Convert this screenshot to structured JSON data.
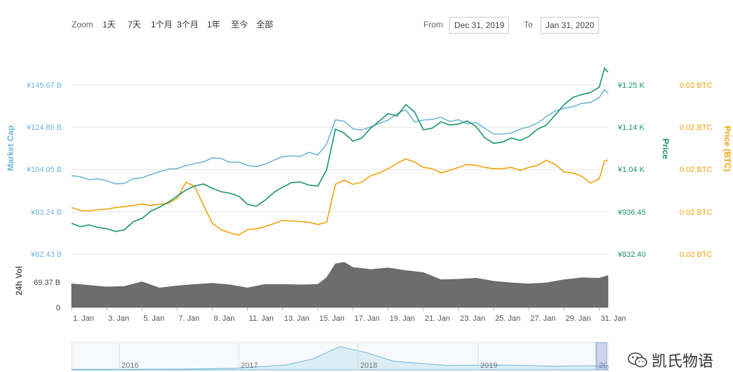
{
  "toolbar": {
    "zoom_label": "Zoom",
    "zoom_buttons": [
      "1天",
      "7天",
      "1个月",
      "3个月",
      "1年",
      "至今",
      "全部"
    ],
    "from_label": "From",
    "from_value": "Dec 31, 2019",
    "to_label": "To",
    "to_value": "Jan 31, 2020"
  },
  "watermark_text": "凯氏物语",
  "colors": {
    "market_cap": "#6fb6d6",
    "price": "#1a9470",
    "price_btc": "#f0a30a",
    "volume": "#6d6d6d",
    "grid": "#e6e6e6"
  },
  "chart_data": {
    "type": "line",
    "xlabel": "",
    "x_ticks": [
      "1. Jan",
      "3. Jan",
      "5. Jan",
      "7. Jan",
      "9. Jan",
      "11. Jan",
      "13. Jan",
      "15. Jan",
      "17. Jan",
      "19. Jan",
      "21. Jan",
      "23. Jan",
      "25. Jan",
      "27. Jan",
      "29. Jan",
      "31. Jan"
    ],
    "x_range": [
      0,
      30.5
    ],
    "axes": {
      "market_cap": {
        "label": "Market Cap",
        "ticks": [
          "¥62.43 B",
          "¥83.24 B",
          "¥104.05 B",
          "¥124.86 B",
          "¥145.67 B"
        ],
        "range": [
          62.43,
          145.67
        ],
        "unit": "¥ B"
      },
      "price": {
        "label": "Price",
        "ticks": [
          "¥832.40",
          "¥936.45",
          "¥1.04 K",
          "¥1.14 K",
          "¥1.25 K"
        ],
        "range": [
          832.4,
          1248.6
        ],
        "unit": "¥"
      },
      "price_btc": {
        "label": "Price (BTC)",
        "ticks": [
          "0.02 BTC",
          "0.02 BTC",
          "0.02 BTC",
          "0.02 BTC",
          "0.02 BTC"
        ],
        "range": [
          0,
          4
        ]
      },
      "volume": {
        "label": "24h Vol",
        "ticks": [
          "0",
          "69.37 B"
        ],
        "range": [
          0,
          104
        ],
        "unit": "¥ B"
      }
    },
    "series": [
      {
        "name": "Market Cap",
        "axis": "market_cap",
        "x": [
          0,
          0.5,
          1,
          1.5,
          2,
          2.5,
          3,
          3.5,
          4,
          4.5,
          5,
          5.5,
          6,
          6.5,
          7,
          7.5,
          8,
          8.5,
          9,
          9.5,
          10,
          10.5,
          11,
          11.5,
          12,
          12.5,
          13,
          13.5,
          14,
          14.5,
          15,
          15.5,
          16,
          16.5,
          17,
          17.5,
          18,
          18.5,
          19,
          19.5,
          20,
          20.5,
          21,
          21.5,
          22,
          22.5,
          23,
          23.5,
          24,
          24.5,
          25,
          25.5,
          26,
          26.5,
          27,
          27.5,
          28,
          28.5,
          29,
          29.5,
          30,
          30.3,
          30.5
        ],
        "y": [
          101,
          100.5,
          99,
          99.5,
          98.5,
          97,
          97.2,
          99.5,
          100,
          101.5,
          103,
          104.2,
          104.5,
          106,
          107,
          107.8,
          109.8,
          109.5,
          107.5,
          107.8,
          106,
          105.5,
          106.6,
          108.6,
          110.4,
          110.8,
          110.5,
          112.5,
          111.2,
          116.5,
          128.5,
          127.8,
          124,
          123.5,
          125,
          126.7,
          128.4,
          131.5,
          133.5,
          127.5,
          128.4,
          128.7,
          129.7,
          127.7,
          128.5,
          126.5,
          127.2,
          124.3,
          121.5,
          121.5,
          122,
          123.9,
          125.1,
          126.9,
          130.1,
          132.9,
          134.2,
          134.9,
          136.6,
          137,
          139.5,
          143.4,
          141.5
        ]
      },
      {
        "name": "Price",
        "axis": "price",
        "x": [
          0,
          0.5,
          1,
          1.5,
          2,
          2.5,
          3,
          3.5,
          4,
          4.5,
          5,
          5.5,
          6,
          6.5,
          7,
          7.5,
          8,
          8.5,
          9,
          9.5,
          10,
          10.5,
          11,
          11.5,
          12,
          12.5,
          13,
          13.5,
          14,
          14.5,
          15,
          15.5,
          16,
          16.5,
          17,
          17.5,
          18,
          18.5,
          19,
          19.5,
          20,
          20.5,
          21,
          21.5,
          22,
          22.5,
          23,
          23.5,
          24,
          24.5,
          25,
          25.5,
          26,
          26.5,
          27,
          27.5,
          28,
          28.5,
          29,
          29.5,
          30,
          30.3,
          30.5
        ],
        "y": [
          908,
          900,
          904,
          898,
          895,
          888,
          892,
          912,
          920,
          938,
          948,
          960,
          975,
          990,
          1000,
          1005,
          994,
          986,
          982,
          975,
          955,
          950,
          965,
          984,
          997,
          1008,
          1010,
          1002,
          1000,
          1040,
          1140,
          1130,
          1110,
          1118,
          1142,
          1160,
          1178,
          1172,
          1200,
          1182,
          1138,
          1142,
          1158,
          1150,
          1152,
          1160,
          1146,
          1118,
          1105,
          1108,
          1118,
          1112,
          1122,
          1140,
          1150,
          1175,
          1200,
          1218,
          1225,
          1230,
          1243,
          1290,
          1280
        ]
      },
      {
        "name": "Price (BTC)",
        "axis": "price_btc",
        "x": [
          0,
          0.5,
          1,
          1.5,
          2,
          2.5,
          3,
          3.5,
          4,
          4.5,
          5,
          5.5,
          6,
          6.5,
          7,
          7.5,
          8,
          8.5,
          9,
          9.5,
          10,
          10.5,
          11,
          11.5,
          12,
          12.5,
          13,
          13.5,
          14,
          14.5,
          15,
          15.5,
          16,
          16.5,
          17,
          17.5,
          18,
          18.5,
          19,
          19.5,
          20,
          20.5,
          21,
          21.5,
          22,
          22.5,
          23,
          23.5,
          24,
          24.5,
          25,
          25.5,
          26,
          26.5,
          27,
          27.5,
          28,
          28.5,
          29,
          29.5,
          30,
          30.3,
          30.5
        ],
        "y": [
          1.1,
          1.03,
          1.02,
          1.05,
          1.06,
          1.1,
          1.12,
          1.15,
          1.18,
          1.15,
          1.18,
          1.2,
          1.32,
          1.7,
          1.6,
          1.15,
          0.73,
          0.58,
          0.5,
          0.45,
          0.58,
          0.6,
          0.65,
          0.72,
          0.8,
          0.78,
          0.77,
          0.75,
          0.7,
          0.75,
          1.65,
          1.75,
          1.65,
          1.7,
          1.85,
          1.92,
          2.02,
          2.15,
          2.25,
          2.18,
          2.05,
          2.02,
          1.92,
          1.98,
          2.05,
          2.12,
          2.1,
          2.05,
          2.02,
          2.02,
          2.05,
          1.98,
          2.05,
          2.1,
          2.22,
          2.12,
          1.94,
          1.92,
          1.84,
          1.68,
          1.78,
          2.2,
          2.22
        ]
      },
      {
        "name": "24h Vol",
        "axis": "volume",
        "x": [
          0,
          1,
          2,
          3,
          4,
          5,
          6,
          7,
          8,
          9,
          10,
          11,
          12,
          13,
          14,
          14.5,
          15,
          15.5,
          16,
          17,
          18,
          19,
          20,
          21,
          22,
          23,
          24,
          25,
          26,
          27,
          28,
          29,
          30,
          30.5
        ],
        "y": [
          46,
          43,
          40,
          41,
          50,
          38,
          42,
          45,
          47,
          44,
          38,
          45,
          45,
          44,
          45,
          58,
          85,
          88,
          78,
          74,
          77,
          72,
          68,
          54,
          55,
          57,
          51,
          48,
          46,
          48,
          54,
          58,
          57,
          62
        ]
      }
    ],
    "navigator": {
      "ticks": [
        "2016",
        "2017",
        "2018",
        "2019",
        "20"
      ],
      "x": [
        0,
        0.1,
        0.2,
        0.3,
        0.4,
        0.45,
        0.5,
        0.55,
        0.6,
        0.7,
        0.8,
        0.9,
        1
      ],
      "y": [
        0.02,
        0.02,
        0.03,
        0.06,
        0.2,
        0.45,
        0.95,
        0.7,
        0.35,
        0.18,
        0.2,
        0.15,
        0.18
      ]
    },
    "grid": true,
    "legend": "none"
  }
}
